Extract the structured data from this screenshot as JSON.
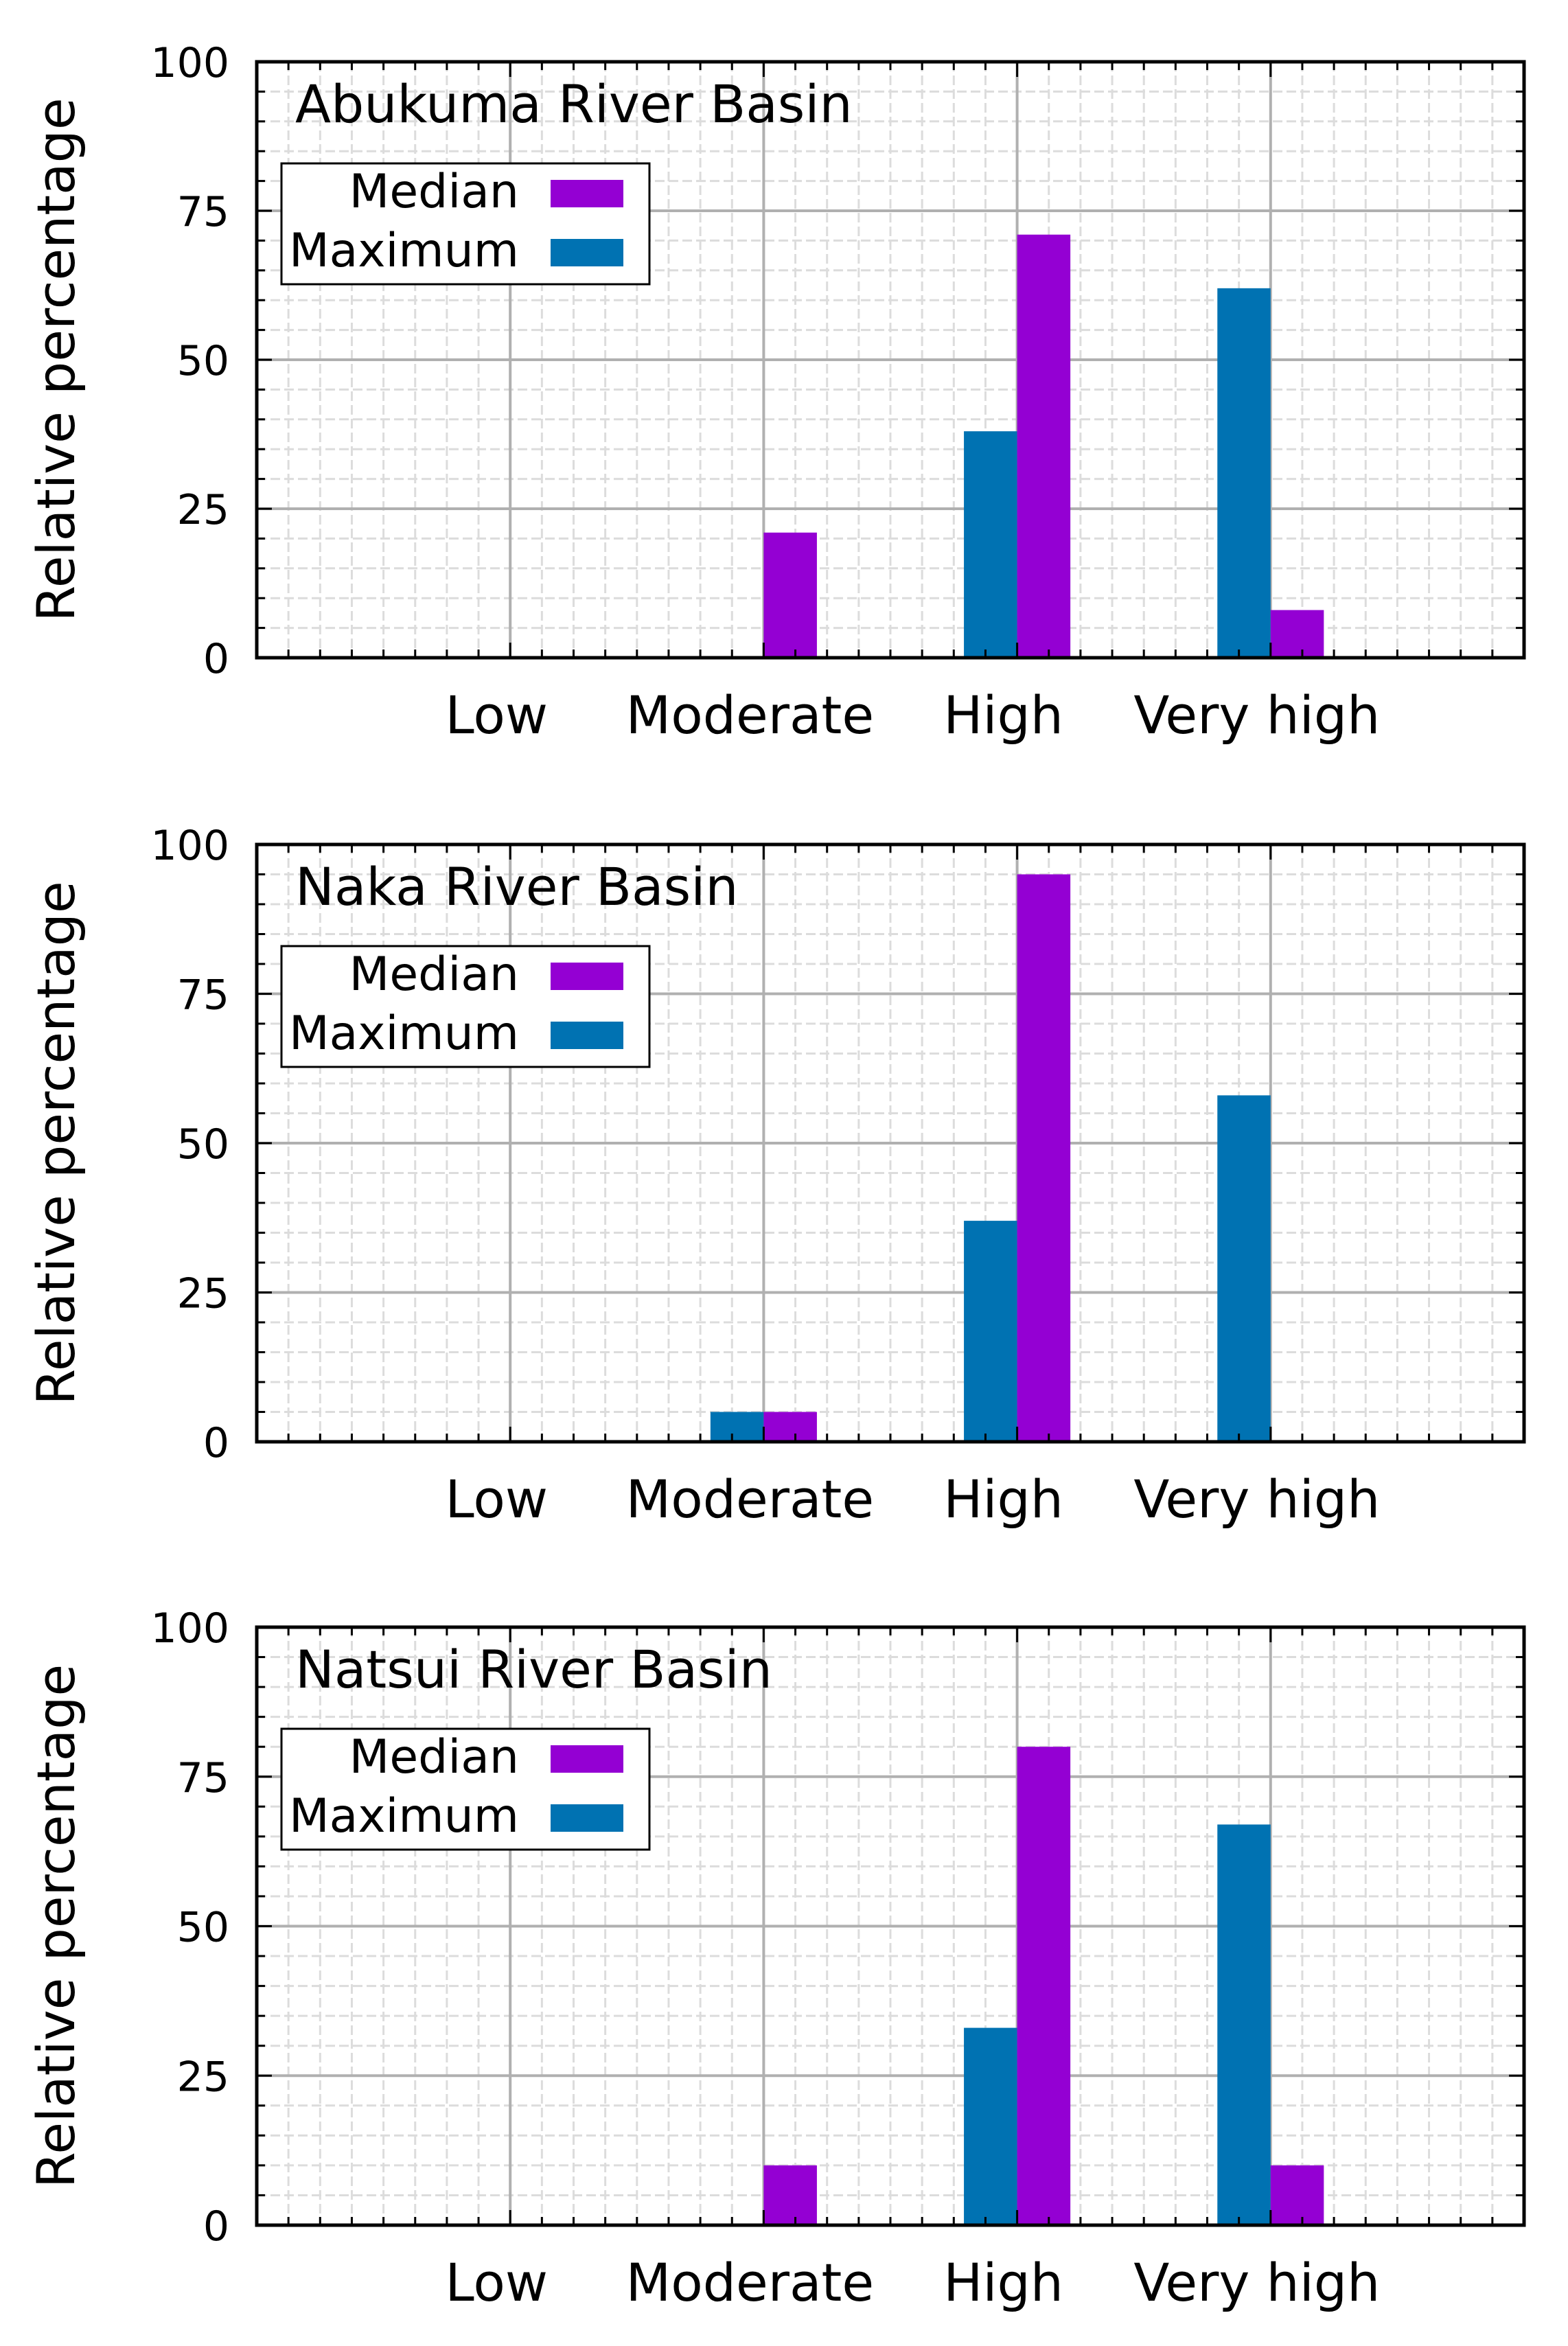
{
  "y_axis_label": "Relative percentage",
  "legend_labels": {
    "median": "Median",
    "maximum": "Maximum"
  },
  "colors": {
    "median": "#9400d3",
    "maximum": "#0072b2",
    "frame": "#000000",
    "grid_major": "#b0b0b0",
    "grid_minor": "#dcdcdc"
  },
  "chart_data": [
    {
      "type": "bar",
      "title": "Abukuma River Basin",
      "categories": [
        "Low",
        "Moderate",
        "High",
        "Very high"
      ],
      "ylim": [
        0,
        100
      ],
      "yticks": [
        0,
        25,
        50,
        75,
        100
      ],
      "ylabel": "Relative percentage",
      "grid": true,
      "legend": "top-left",
      "series": [
        {
          "name": "Maximum",
          "values": [
            0,
            0,
            38,
            62
          ]
        },
        {
          "name": "Median",
          "values": [
            0,
            21,
            71,
            8
          ]
        }
      ]
    },
    {
      "type": "bar",
      "title": "Naka River Basin",
      "categories": [
        "Low",
        "Moderate",
        "High",
        "Very high"
      ],
      "ylim": [
        0,
        100
      ],
      "yticks": [
        0,
        25,
        50,
        75,
        100
      ],
      "ylabel": "Relative percentage",
      "grid": true,
      "legend": "top-left",
      "series": [
        {
          "name": "Maximum",
          "values": [
            0,
            5,
            37,
            58
          ]
        },
        {
          "name": "Median",
          "values": [
            0,
            5,
            95,
            0
          ]
        }
      ]
    },
    {
      "type": "bar",
      "title": "Natsui River Basin",
      "categories": [
        "Low",
        "Moderate",
        "High",
        "Very high"
      ],
      "ylim": [
        0,
        100
      ],
      "yticks": [
        0,
        25,
        50,
        75,
        100
      ],
      "ylabel": "Relative percentage",
      "grid": true,
      "legend": "top-left",
      "series": [
        {
          "name": "Maximum",
          "values": [
            0,
            0,
            33,
            67
          ]
        },
        {
          "name": "Median",
          "values": [
            0,
            10,
            80,
            10
          ]
        }
      ]
    }
  ]
}
